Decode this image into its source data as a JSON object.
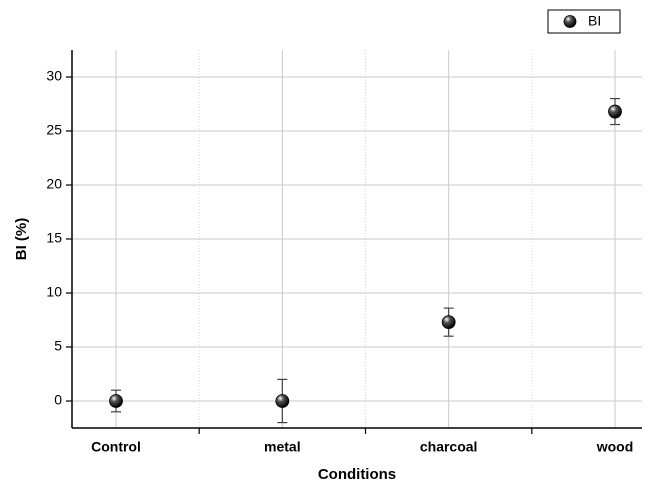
{
  "chart_data": {
    "type": "scatter",
    "x_label": "Conditions",
    "y_label": "BI (%)",
    "categories": [
      "Control",
      "metal",
      "charcoal",
      "wood"
    ],
    "series": [
      {
        "name": "BI",
        "color": "#000000",
        "values": [
          0,
          0,
          7.3,
          26.8
        ],
        "errors": [
          1.0,
          2.0,
          1.3,
          1.2
        ]
      }
    ],
    "ylim": [
      -2.5,
      32.5
    ],
    "yticks": [
      0,
      5,
      10,
      15,
      20,
      25,
      30
    ],
    "grid": true,
    "legend": "top-right"
  }
}
